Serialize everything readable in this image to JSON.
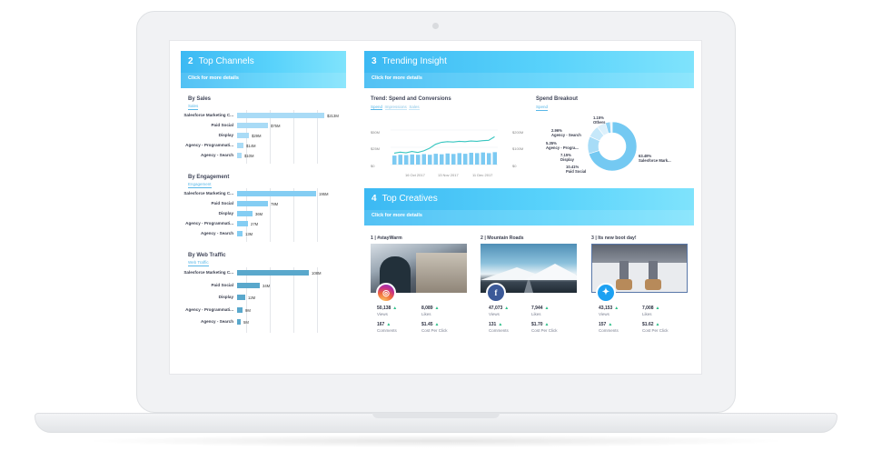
{
  "panels": {
    "top_channels": {
      "number": "2",
      "title": "Top Channels",
      "link": "Click for more details",
      "by_sales": {
        "title": "By Sales",
        "tab": "Sales",
        "rows": [
          {
            "label": "Salesforce Marketing C...",
            "value": "$213M",
            "frac": 0.96
          },
          {
            "label": "Paid Social",
            "value": "$75M",
            "frac": 0.34
          },
          {
            "label": "Display",
            "value": "$29M",
            "frac": 0.13
          },
          {
            "label": "Agency - Programmati...",
            "value": "$14M",
            "frac": 0.07
          },
          {
            "label": "Agency - Search",
            "value": "$10M",
            "frac": 0.05
          }
        ]
      },
      "by_engagement": {
        "title": "By Engagement",
        "tab": "Engagement",
        "rows": [
          {
            "label": "Salesforce Marketing C...",
            "value": "195M",
            "frac": 0.87
          },
          {
            "label": "Paid Social",
            "value": "78M",
            "frac": 0.34
          },
          {
            "label": "Display",
            "value": "36M",
            "frac": 0.17
          },
          {
            "label": "Agency - Programmati...",
            "value": "27M",
            "frac": 0.12
          },
          {
            "label": "Agency - Search",
            "value": "13M",
            "frac": 0.06
          }
        ]
      },
      "by_web_traffic": {
        "title": "By Web Traffic",
        "tab": "Web Traffic",
        "rows": [
          {
            "label": "Salesforce Marketing C...",
            "value": "108M",
            "frac": 0.79
          },
          {
            "label": "Paid Social",
            "value": "34M",
            "frac": 0.25
          },
          {
            "label": "Display",
            "value": "12M",
            "frac": 0.09
          },
          {
            "label": "Agency - Programmati...",
            "value": "9M",
            "frac": 0.06
          },
          {
            "label": "Agency - Search",
            "value": "5M",
            "frac": 0.04
          }
        ]
      }
    },
    "trending_insight": {
      "number": "3",
      "title": "Trending Insight",
      "link": "Click for more details",
      "trend": {
        "title": "Trend: Spend and Conversions",
        "tabs": [
          "Spend",
          "Impressions",
          "Sales"
        ],
        "y_left": [
          "$50M",
          "$25M",
          "$0"
        ],
        "y_right": [
          "$200M",
          "$100M",
          "$0"
        ],
        "x_labels": [
          "16 Oct 2017",
          "13 Nov 2017",
          "11 Dec 2017"
        ]
      },
      "breakout": {
        "title": "Spend Breakout",
        "tab": "Spend",
        "slices": [
          {
            "pct": "63.49%",
            "name": "Salesforce Mark...",
            "value": 63.49
          },
          {
            "pct": "10.41%",
            "name": "Paid Social",
            "value": 10.41
          },
          {
            "pct": "7.15%",
            "name": "Display",
            "value": 7.15
          },
          {
            "pct": "5.35%",
            "name": "Agency - Progra...",
            "value": 5.35
          },
          {
            "pct": "2.96%",
            "name": "Agency - Search",
            "value": 2.96
          },
          {
            "pct": "1.15%",
            "name": "Others",
            "value": 1.15
          }
        ]
      }
    },
    "top_creatives": {
      "number": "4",
      "title": "Top Creatives",
      "link": "Click for more details",
      "items": [
        {
          "title": "1 | #stayWarm",
          "network": "instagram-icon",
          "views": "50,138",
          "likes": "8,089",
          "comments": "167",
          "cpc": "$1.45"
        },
        {
          "title": "2 | Mountain Roads",
          "network": "facebook-icon",
          "views": "47,073",
          "likes": "7,944",
          "comments": "131",
          "cpc": "$1.70"
        },
        {
          "title": "3 | Its new boot day!",
          "network": "twitter-icon",
          "views": "43,153",
          "likes": "7,008",
          "comments": "157",
          "cpc": "$1.62"
        }
      ],
      "labels": {
        "views": "Views",
        "likes": "Likes",
        "comments": "Comments",
        "cpc": "Cost Per Click"
      }
    }
  },
  "colors": {
    "sales_bar": "#a9dbf6",
    "engagement_bar": "#84cdf3",
    "traffic_bar": "#5aa8cc",
    "line": "#38c6c0",
    "column": "#7ccaf2",
    "donut": [
      "#74c9f2",
      "#a7dcf7",
      "#c6e8fa",
      "#dcf0fb",
      "#8fd2f4",
      "#e9f5fc"
    ]
  }
}
